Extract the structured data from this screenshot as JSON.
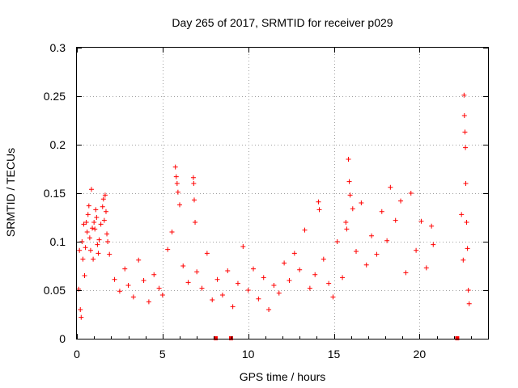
{
  "chart_data": {
    "type": "scatter",
    "title": "Day 265 of 2017, SRMTID for receiver p029",
    "xlabel": "GPS time / hours",
    "ylabel": "SRMTID / TECUs",
    "xlim": [
      0,
      24
    ],
    "ylim": [
      0,
      0.3
    ],
    "x_ticks": [
      0,
      5,
      10,
      15,
      20
    ],
    "x_tick_labels": [
      "0",
      "5",
      "10",
      "15",
      "20"
    ],
    "y_ticks": [
      0,
      0.05,
      0.1,
      0.15,
      0.2,
      0.25,
      0.3
    ],
    "y_tick_labels": [
      "0",
      "0.05",
      "0.1",
      "0.15",
      "0.2",
      "0.25",
      "0.3"
    ],
    "grid": true,
    "marker": "plus",
    "color": "#ff0000",
    "series": [
      {
        "name": "SRMTID",
        "points": [
          [
            0.1,
            0.051
          ],
          [
            0.15,
            0.091
          ],
          [
            0.2,
            0.03
          ],
          [
            0.25,
            0.022
          ],
          [
            0.3,
            0.1
          ],
          [
            0.35,
            0.082
          ],
          [
            0.4,
            0.118
          ],
          [
            0.45,
            0.065
          ],
          [
            0.5,
            0.094
          ],
          [
            0.55,
            0.12
          ],
          [
            0.6,
            0.11
          ],
          [
            0.65,
            0.128
          ],
          [
            0.7,
            0.137
          ],
          [
            0.75,
            0.104
          ],
          [
            0.8,
            0.091
          ],
          [
            0.85,
            0.154
          ],
          [
            0.9,
            0.114
          ],
          [
            0.95,
            0.082
          ],
          [
            1.0,
            0.12
          ],
          [
            1.05,
            0.113
          ],
          [
            1.1,
            0.133
          ],
          [
            1.15,
            0.125
          ],
          [
            1.2,
            0.097
          ],
          [
            1.25,
            0.088
          ],
          [
            1.3,
            0.102
          ],
          [
            1.4,
            0.118
          ],
          [
            1.5,
            0.136
          ],
          [
            1.55,
            0.144
          ],
          [
            1.6,
            0.122
          ],
          [
            1.65,
            0.148
          ],
          [
            1.7,
            0.131
          ],
          [
            1.75,
            0.108
          ],
          [
            1.8,
            0.1
          ],
          [
            1.9,
            0.087
          ],
          [
            2.2,
            0.061
          ],
          [
            2.5,
            0.049
          ],
          [
            2.8,
            0.072
          ],
          [
            3.0,
            0.055
          ],
          [
            3.3,
            0.043
          ],
          [
            3.6,
            0.081
          ],
          [
            3.9,
            0.06
          ],
          [
            4.2,
            0.038
          ],
          [
            4.5,
            0.066
          ],
          [
            4.8,
            0.052
          ],
          [
            5.0,
            0.045
          ],
          [
            5.3,
            0.092
          ],
          [
            5.55,
            0.11
          ],
          [
            5.75,
            0.177
          ],
          [
            5.8,
            0.167
          ],
          [
            5.85,
            0.16
          ],
          [
            5.9,
            0.151
          ],
          [
            6.0,
            0.138
          ],
          [
            6.2,
            0.075
          ],
          [
            6.5,
            0.058
          ],
          [
            6.8,
            0.166
          ],
          [
            6.82,
            0.16
          ],
          [
            6.85,
            0.143
          ],
          [
            6.9,
            0.12
          ],
          [
            7.0,
            0.069
          ],
          [
            7.3,
            0.052
          ],
          [
            7.6,
            0.088
          ],
          [
            7.9,
            0.04
          ],
          [
            8.2,
            0.061
          ],
          [
            8.5,
            0.045
          ],
          [
            8.8,
            0.07
          ],
          [
            9.1,
            0.033
          ],
          [
            9.4,
            0.057
          ],
          [
            9.7,
            0.095
          ],
          [
            10.0,
            0.05
          ],
          [
            10.3,
            0.072
          ],
          [
            10.6,
            0.041
          ],
          [
            10.9,
            0.063
          ],
          [
            11.2,
            0.03
          ],
          [
            11.5,
            0.055
          ],
          [
            11.8,
            0.047
          ],
          [
            12.1,
            0.078
          ],
          [
            12.4,
            0.06
          ],
          [
            12.7,
            0.088
          ],
          [
            13.0,
            0.071
          ],
          [
            13.3,
            0.112
          ],
          [
            13.6,
            0.052
          ],
          [
            13.9,
            0.066
          ],
          [
            14.1,
            0.141
          ],
          [
            14.15,
            0.133
          ],
          [
            14.4,
            0.082
          ],
          [
            14.7,
            0.057
          ],
          [
            14.95,
            0.043
          ],
          [
            15.2,
            0.1
          ],
          [
            15.5,
            0.063
          ],
          [
            15.7,
            0.12
          ],
          [
            15.75,
            0.113
          ],
          [
            15.85,
            0.185
          ],
          [
            15.9,
            0.162
          ],
          [
            15.95,
            0.148
          ],
          [
            16.1,
            0.134
          ],
          [
            16.3,
            0.09
          ],
          [
            16.6,
            0.14
          ],
          [
            16.9,
            0.076
          ],
          [
            17.2,
            0.106
          ],
          [
            17.5,
            0.087
          ],
          [
            17.8,
            0.131
          ],
          [
            18.1,
            0.101
          ],
          [
            18.3,
            0.156
          ],
          [
            18.6,
            0.122
          ],
          [
            18.9,
            0.142
          ],
          [
            19.2,
            0.068
          ],
          [
            19.5,
            0.15
          ],
          [
            19.8,
            0.091
          ],
          [
            20.1,
            0.121
          ],
          [
            20.4,
            0.073
          ],
          [
            20.7,
            0.116
          ],
          [
            20.8,
            0.097
          ],
          [
            22.45,
            0.128
          ],
          [
            22.55,
            0.081
          ],
          [
            22.6,
            0.251
          ],
          [
            22.62,
            0.23
          ],
          [
            22.65,
            0.213
          ],
          [
            22.68,
            0.197
          ],
          [
            22.7,
            0.16
          ],
          [
            22.75,
            0.12
          ],
          [
            22.8,
            0.093
          ],
          [
            22.85,
            0.05
          ],
          [
            22.9,
            0.036
          ]
        ],
        "zero_points": [
          [
            8.1,
            0
          ],
          [
            9.0,
            0
          ],
          [
            22.2,
            0
          ]
        ]
      }
    ]
  }
}
